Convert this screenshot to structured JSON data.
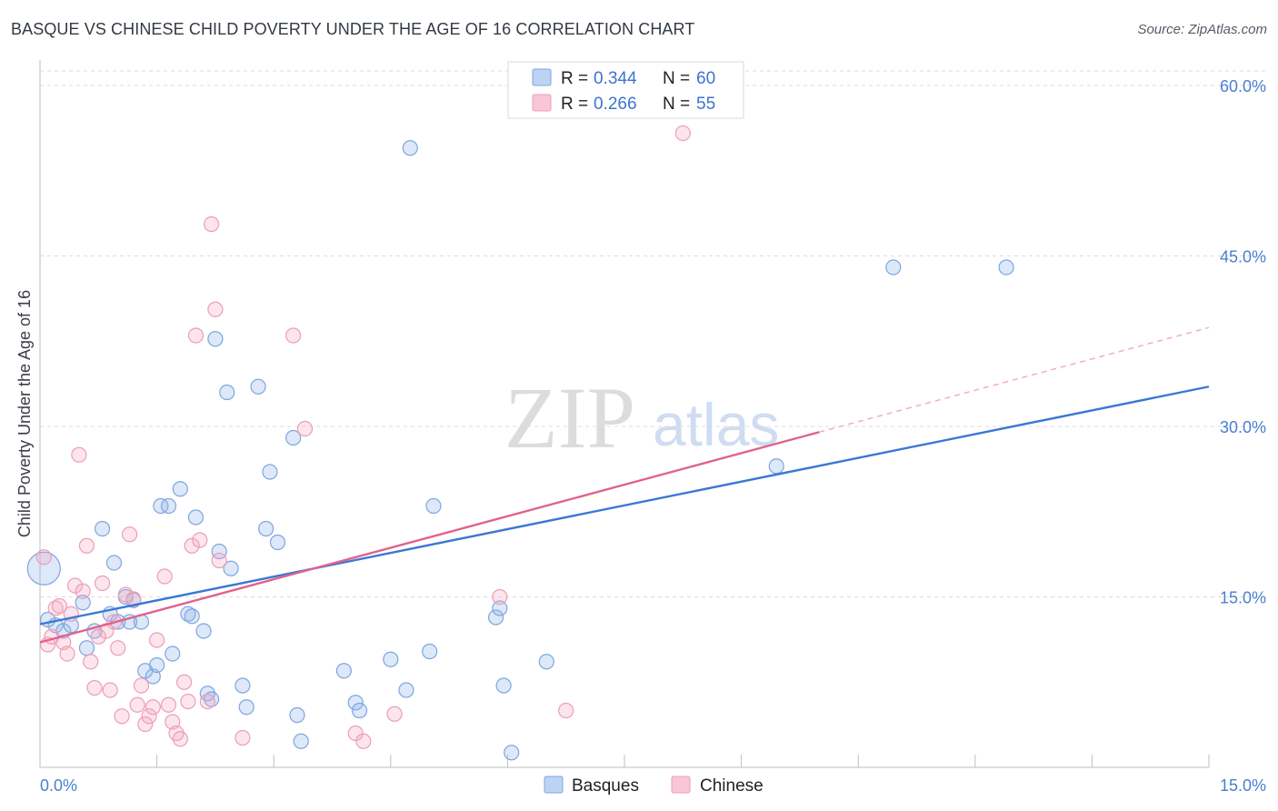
{
  "title": "BASQUE VS CHINESE CHILD POVERTY UNDER THE AGE OF 16 CORRELATION CHART",
  "source": "Source: ZipAtlas.com",
  "chart_data": {
    "type": "scatter",
    "title": "BASQUE VS CHINESE CHILD POVERTY UNDER THE AGE OF 16 CORRELATION CHART",
    "xlabel": "",
    "ylabel": "Child Poverty Under the Age of 16",
    "xlim": [
      0,
      15
    ],
    "ylim": [
      0,
      60
    ],
    "x_tick_labels": [
      "0.0%",
      "15.0%"
    ],
    "y_ticks": [
      15,
      30,
      45,
      60
    ],
    "y_tick_labels": [
      "15.0%",
      "30.0%",
      "45.0%",
      "60.0%"
    ],
    "grid": true,
    "watermark": "ZIPatlas",
    "legend": {
      "position": "top-center",
      "entries": [
        {
          "series": "Basques",
          "r_label": "R =",
          "r_value": "0.344",
          "n_label": "N =",
          "n_value": "60"
        },
        {
          "series": "Chinese",
          "r_label": "R =",
          "r_value": "0.266",
          "n_label": "N =",
          "n_value": "55"
        }
      ]
    },
    "series": [
      {
        "name": "Basques",
        "color": "#8fb4e8",
        "line_color": "#3a78d4",
        "trend": {
          "x": [
            0.0,
            15.0
          ],
          "y": [
            12.6,
            33.5
          ]
        },
        "points": [
          {
            "x": 0.05,
            "y": 17.5,
            "big": true
          },
          {
            "x": 0.1,
            "y": 13.0
          },
          {
            "x": 0.2,
            "y": 12.5
          },
          {
            "x": 0.3,
            "y": 12.0
          },
          {
            "x": 0.4,
            "y": 12.5
          },
          {
            "x": 0.55,
            "y": 14.5
          },
          {
            "x": 0.6,
            "y": 10.5
          },
          {
            "x": 0.7,
            "y": 12.0
          },
          {
            "x": 0.8,
            "y": 21.0
          },
          {
            "x": 0.9,
            "y": 13.5
          },
          {
            "x": 0.95,
            "y": 18.0
          },
          {
            "x": 1.0,
            "y": 12.8
          },
          {
            "x": 1.1,
            "y": 15.0
          },
          {
            "x": 1.15,
            "y": 12.8
          },
          {
            "x": 1.2,
            "y": 14.7
          },
          {
            "x": 1.3,
            "y": 12.8
          },
          {
            "x": 1.35,
            "y": 8.5
          },
          {
            "x": 1.45,
            "y": 8.0
          },
          {
            "x": 1.5,
            "y": 9.0
          },
          {
            "x": 1.55,
            "y": 23.0
          },
          {
            "x": 1.65,
            "y": 23.0
          },
          {
            "x": 1.7,
            "y": 10.0
          },
          {
            "x": 1.8,
            "y": 24.5
          },
          {
            "x": 1.9,
            "y": 13.5
          },
          {
            "x": 1.95,
            "y": 13.3
          },
          {
            "x": 2.0,
            "y": 22.0
          },
          {
            "x": 2.1,
            "y": 12.0
          },
          {
            "x": 2.15,
            "y": 6.5
          },
          {
            "x": 2.2,
            "y": 6.0
          },
          {
            "x": 2.25,
            "y": 37.7
          },
          {
            "x": 2.3,
            "y": 19.0
          },
          {
            "x": 2.4,
            "y": 33.0
          },
          {
            "x": 2.45,
            "y": 17.5
          },
          {
            "x": 2.6,
            "y": 7.2
          },
          {
            "x": 2.65,
            "y": 5.3
          },
          {
            "x": 2.8,
            "y": 33.5
          },
          {
            "x": 2.9,
            "y": 21.0
          },
          {
            "x": 2.95,
            "y": 26.0
          },
          {
            "x": 3.05,
            "y": 19.8
          },
          {
            "x": 3.25,
            "y": 29.0
          },
          {
            "x": 3.3,
            "y": 4.6
          },
          {
            "x": 3.35,
            "y": 2.3
          },
          {
            "x": 3.9,
            "y": 8.5
          },
          {
            "x": 4.05,
            "y": 5.7
          },
          {
            "x": 4.1,
            "y": 5.0
          },
          {
            "x": 4.5,
            "y": 9.5
          },
          {
            "x": 4.7,
            "y": 6.8
          },
          {
            "x": 4.75,
            "y": 54.5
          },
          {
            "x": 5.0,
            "y": 10.2
          },
          {
            "x": 5.05,
            "y": 23.0
          },
          {
            "x": 5.85,
            "y": 13.2
          },
          {
            "x": 5.9,
            "y": 14.0
          },
          {
            "x": 5.95,
            "y": 7.2
          },
          {
            "x": 6.05,
            "y": 1.3
          },
          {
            "x": 6.5,
            "y": 9.3
          },
          {
            "x": 9.45,
            "y": 26.5
          },
          {
            "x": 10.95,
            "y": 44.0
          },
          {
            "x": 12.4,
            "y": 44.0
          }
        ]
      },
      {
        "name": "Chinese",
        "color": "#f4a9c1",
        "line_color": "#e0628e",
        "trend": {
          "x": [
            0.0,
            10.0
          ],
          "y": [
            11.0,
            29.5
          ]
        },
        "trend_extension": {
          "x": [
            10.0,
            15.0
          ],
          "y": [
            29.5,
            38.7
          ]
        },
        "points": [
          {
            "x": 0.05,
            "y": 18.5
          },
          {
            "x": 0.1,
            "y": 10.8
          },
          {
            "x": 0.15,
            "y": 11.5
          },
          {
            "x": 0.2,
            "y": 14.0
          },
          {
            "x": 0.25,
            "y": 14.2
          },
          {
            "x": 0.3,
            "y": 11.0
          },
          {
            "x": 0.35,
            "y": 10.0
          },
          {
            "x": 0.4,
            "y": 13.5
          },
          {
            "x": 0.45,
            "y": 16.0
          },
          {
            "x": 0.5,
            "y": 27.5
          },
          {
            "x": 0.55,
            "y": 15.5
          },
          {
            "x": 0.6,
            "y": 19.5
          },
          {
            "x": 0.65,
            "y": 9.3
          },
          {
            "x": 0.7,
            "y": 7.0
          },
          {
            "x": 0.75,
            "y": 11.5
          },
          {
            "x": 0.8,
            "y": 16.2
          },
          {
            "x": 0.85,
            "y": 12.0
          },
          {
            "x": 0.9,
            "y": 6.8
          },
          {
            "x": 0.95,
            "y": 12.8
          },
          {
            "x": 1.0,
            "y": 10.5
          },
          {
            "x": 1.05,
            "y": 4.5
          },
          {
            "x": 1.1,
            "y": 15.2
          },
          {
            "x": 1.15,
            "y": 20.5
          },
          {
            "x": 1.2,
            "y": 14.8
          },
          {
            "x": 1.25,
            "y": 5.5
          },
          {
            "x": 1.3,
            "y": 7.2
          },
          {
            "x": 1.35,
            "y": 3.8
          },
          {
            "x": 1.4,
            "y": 4.5
          },
          {
            "x": 1.45,
            "y": 5.3
          },
          {
            "x": 1.5,
            "y": 11.2
          },
          {
            "x": 1.6,
            "y": 16.8
          },
          {
            "x": 1.65,
            "y": 5.5
          },
          {
            "x": 1.7,
            "y": 4.0
          },
          {
            "x": 1.75,
            "y": 3.0
          },
          {
            "x": 1.8,
            "y": 2.5
          },
          {
            "x": 1.85,
            "y": 7.5
          },
          {
            "x": 1.9,
            "y": 5.8
          },
          {
            "x": 1.95,
            "y": 19.5
          },
          {
            "x": 2.0,
            "y": 38.0
          },
          {
            "x": 2.05,
            "y": 20.0
          },
          {
            "x": 2.15,
            "y": 5.8
          },
          {
            "x": 2.2,
            "y": 47.8
          },
          {
            "x": 2.25,
            "y": 40.3
          },
          {
            "x": 2.3,
            "y": 18.2
          },
          {
            "x": 2.6,
            "y": 2.6
          },
          {
            "x": 3.25,
            "y": 38.0
          },
          {
            "x": 3.4,
            "y": 29.8
          },
          {
            "x": 4.05,
            "y": 3.0
          },
          {
            "x": 4.15,
            "y": 2.3
          },
          {
            "x": 4.55,
            "y": 4.7
          },
          {
            "x": 5.9,
            "y": 15.0
          },
          {
            "x": 6.75,
            "y": 5.0
          },
          {
            "x": 8.25,
            "y": 55.8
          }
        ]
      }
    ]
  }
}
